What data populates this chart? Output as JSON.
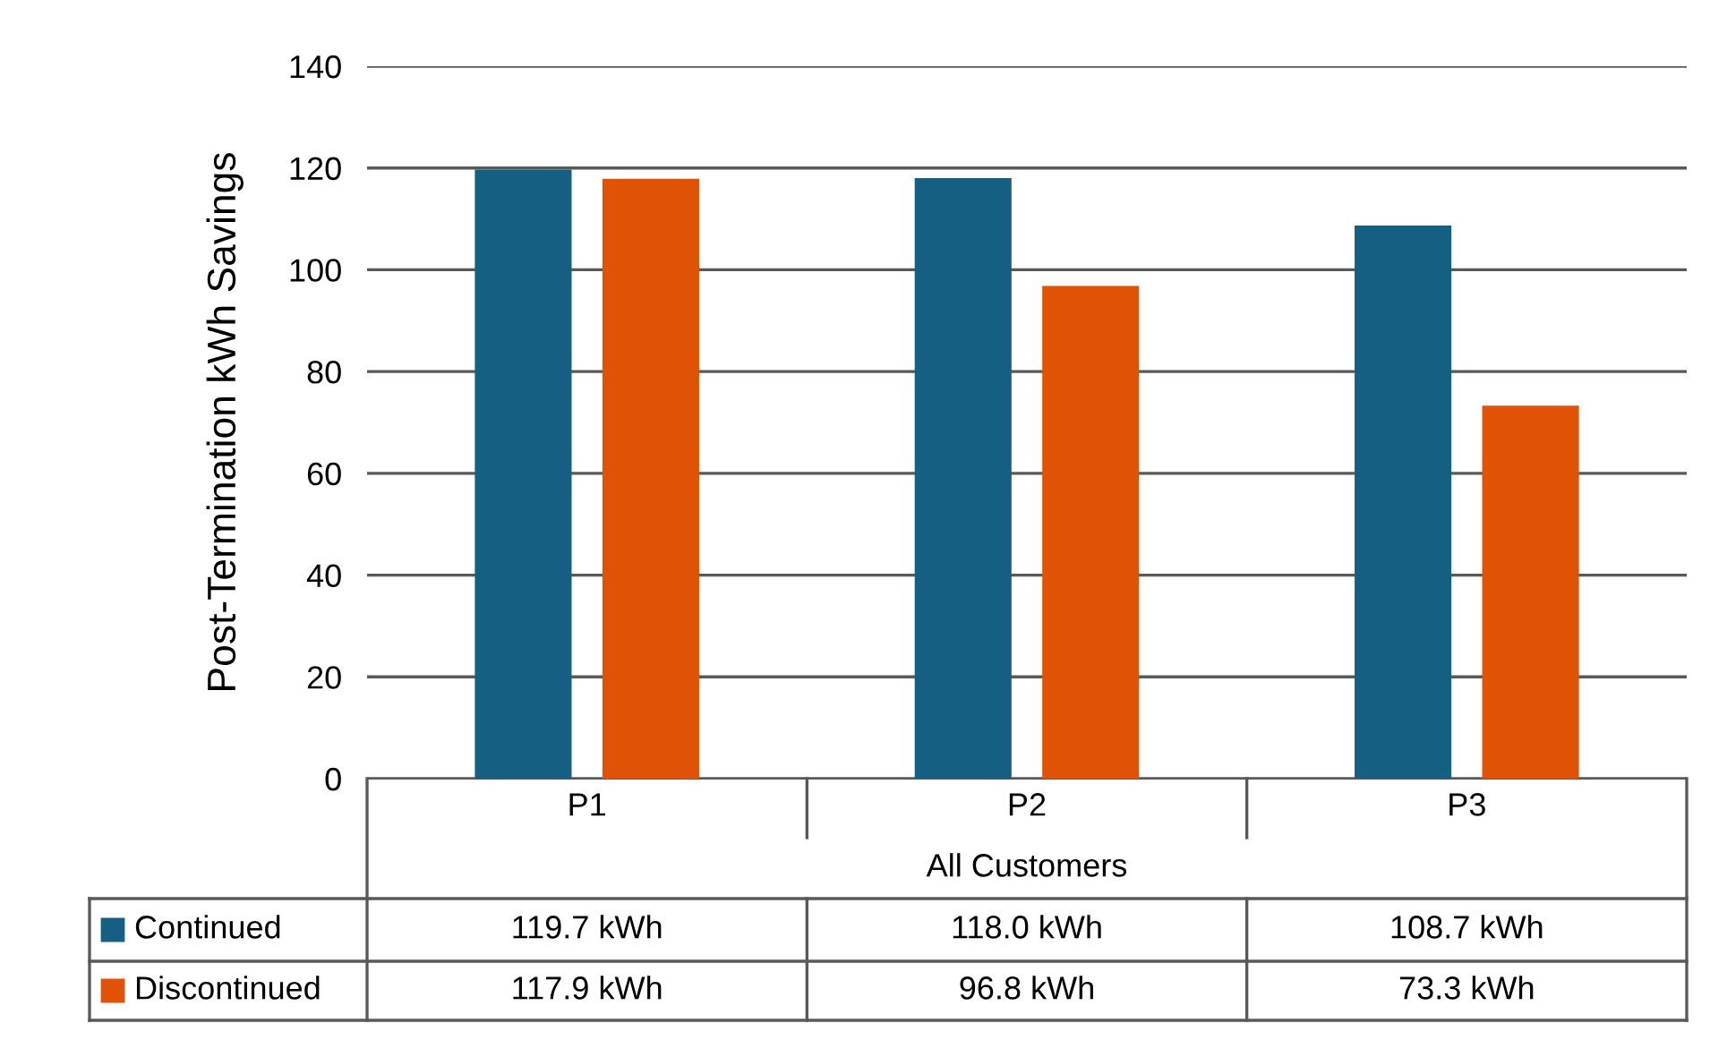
{
  "chart_data": {
    "type": "bar",
    "ylabel": "Post-Termination kWh Savings",
    "xlabel": "All Customers",
    "categories": [
      "P1",
      "P2",
      "P3"
    ],
    "series": [
      {
        "name": "Continued",
        "color": "#156082",
        "values": [
          119.7,
          118.0,
          108.7
        ],
        "value_labels": [
          "119.7 kWh",
          "118.0 kWh",
          "108.7 kWh"
        ]
      },
      {
        "name": "Discontinued",
        "color": "#e05206",
        "values": [
          117.9,
          96.8,
          73.3
        ],
        "value_labels": [
          "117.9 kWh",
          "96.8 kWh",
          "73.3 kWh"
        ]
      }
    ],
    "ylim": [
      0,
      140
    ],
    "yticks": [
      0,
      20,
      40,
      60,
      80,
      100,
      120,
      140
    ],
    "grid": "y",
    "legend": "bottom left"
  }
}
